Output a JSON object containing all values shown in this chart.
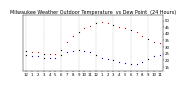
{
  "title": "Milwaukee Weather Outdoor Temperature vs Dew Point (24 Hours)",
  "title_parts": [
    "Milwaukee Weather Outdoor Temperature",
    "vs Dew Point",
    "(24 Hours)"
  ],
  "title_fontsize": 3.5,
  "background_color": "#ffffff",
  "temp_color": "#dd0000",
  "dewpoint_color": "#0000cc",
  "black_color": "#000000",
  "hours": [
    0,
    1,
    2,
    3,
    4,
    5,
    6,
    7,
    8,
    9,
    10,
    11,
    12,
    13,
    14,
    15,
    16,
    17,
    18,
    19,
    20,
    21,
    22,
    23
  ],
  "temp": [
    27,
    26,
    26,
    25,
    25,
    25,
    28,
    34,
    38,
    41,
    44,
    46,
    48,
    49,
    48,
    47,
    45,
    44,
    43,
    41,
    38,
    36,
    34,
    33
  ],
  "dewpoint": [
    24,
    23,
    23,
    22,
    22,
    22,
    24,
    26,
    27,
    28,
    27,
    26,
    24,
    22,
    21,
    20,
    19,
    18,
    17,
    17,
    19,
    21,
    23,
    24
  ],
  "ylim": [
    12,
    54
  ],
  "yticks": [
    15,
    20,
    25,
    30,
    35,
    40,
    45,
    50
  ],
  "ytick_labels": [
    "15",
    "20",
    "25",
    "30",
    "35",
    "40",
    "45",
    "50"
  ],
  "xtick_labels": [
    "12",
    "1",
    "2",
    "3",
    "4",
    "5",
    "6",
    "7",
    "8",
    "9",
    "10",
    "11",
    "12",
    "1",
    "2",
    "3",
    "4",
    "5",
    "6",
    "7",
    "8",
    "9",
    "10",
    "11"
  ],
  "grid_positions": [
    0,
    3,
    6,
    9,
    12,
    15,
    18,
    21
  ],
  "tick_fontsize": 2.8,
  "dot_size": 0.9,
  "grid_color": "#aaaaaa"
}
